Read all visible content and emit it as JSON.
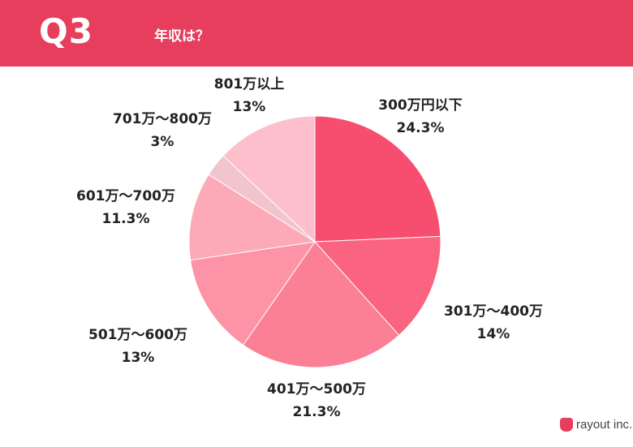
{
  "header": {
    "question_number": "Q3",
    "question_text": "年収は？",
    "background_color": "#e63e5c"
  },
  "chart_data": {
    "type": "pie",
    "title": "",
    "start": "12 o'clock, clockwise",
    "slices": [
      {
        "label": "300万円以下",
        "value": 24.3,
        "value_label": "24.3%",
        "color": "#f74e6f"
      },
      {
        "label": "301万～400万",
        "value": 14,
        "value_label": "14%",
        "color": "#fa6480"
      },
      {
        "label": "401万～500万",
        "value": 21.3,
        "value_label": "21.3%",
        "color": "#fb7f95"
      },
      {
        "label": "501万～600万",
        "value": 13,
        "value_label": "13%",
        "color": "#fc93a6"
      },
      {
        "label": "601万～700万",
        "value": 11.3,
        "value_label": "11.3%",
        "color": "#fdaab8"
      },
      {
        "label": "701万～800万",
        "value": 3,
        "value_label": "3%",
        "color": "#f2c4cd"
      },
      {
        "label": "801万以上",
        "value": 13,
        "value_label": "13%",
        "color": "#fdbfcb"
      }
    ]
  },
  "footer": {
    "logo_text": "rayout inc.",
    "logo_color": "#e63e5c"
  }
}
